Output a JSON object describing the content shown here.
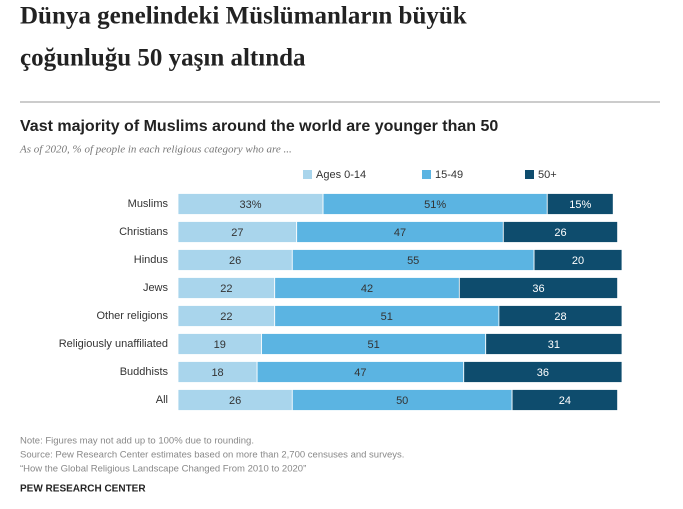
{
  "headline": [
    "Dünya genelindeki Müslümanların büyük",
    "çoğunluğu 50 yaşın altında"
  ],
  "chart_data": {
    "type": "stacked-bar",
    "title": "Vast majority of Muslims around the world are younger than 50",
    "subtitle": "As of 2020, % of people in each religious category who are ...",
    "categories": [
      "Muslims",
      "Christians",
      "Hindus",
      "Jews",
      "Other religions",
      "Religiously unaffiliated",
      "Buddhists",
      "All"
    ],
    "series": [
      {
        "name": "Ages 0-14",
        "color": "#a9d5ec",
        "values": [
          33,
          27,
          26,
          22,
          22,
          19,
          18,
          26
        ],
        "value_labels": [
          "33%",
          "27",
          "26",
          "22",
          "22",
          "19",
          "18",
          "26"
        ]
      },
      {
        "name": "15-49",
        "color": "#5bb4e2",
        "values": [
          51,
          47,
          55,
          42,
          51,
          51,
          47,
          50
        ],
        "value_labels": [
          "51%",
          "47",
          "55",
          "42",
          "51",
          "51",
          "47",
          "50"
        ]
      },
      {
        "name": "50+",
        "color": "#0e4c6d",
        "values": [
          15,
          26,
          20,
          36,
          28,
          31,
          36,
          24
        ],
        "value_labels": [
          "15%",
          "26",
          "20",
          "36",
          "28",
          "31",
          "36",
          "24"
        ]
      }
    ],
    "notes": [
      "Note: Figures may not add up to 100% due to rounding.",
      "Source: Pew Research Center estimates based on more than 2,700 censuses and surveys.",
      "“How the Global Religious Landscape Changed From 2010 to 2020”"
    ],
    "brand": "PEW RESEARCH CENTER"
  }
}
